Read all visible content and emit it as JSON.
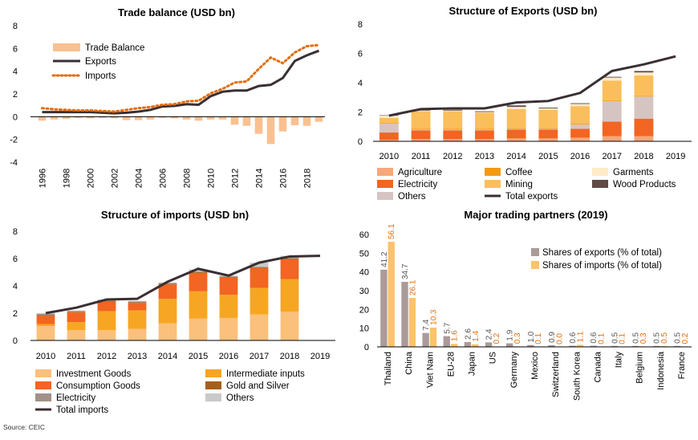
{
  "source": "Source: CEIC",
  "colors": {
    "trade_balance": "#fac090",
    "exports_line": "#3a2f31",
    "imports_line": "#e46c0a",
    "agriculture": "#f7a77a",
    "coffee": "#f59a0f",
    "garments": "#fdebc9",
    "electricity_exp": "#f26522",
    "mining": "#fbbe5c",
    "wood_products": "#5f4b45",
    "others_exp": "#d6c4c3",
    "investment_goods": "#fbc07b",
    "intermediate_inputs": "#f6a623",
    "consumption_goods": "#f26522",
    "gold_silver": "#a5601a",
    "electricity_imp": "#a29189",
    "others_imp": "#c9c9c9",
    "partners_exports": "#ab9b98",
    "partners_imports": "#fbc36a",
    "export_label": "#555555",
    "import_label": "#e46c0a"
  },
  "chart_data": [
    {
      "id": "trade",
      "type": "line",
      "title": "Trade balance (USD bn)",
      "ylim": [
        -4,
        8
      ],
      "yticks": [
        -4,
        -2,
        0,
        2,
        4,
        6,
        8
      ],
      "x_ticks": [
        "1996",
        "1998",
        "2000",
        "2002",
        "2004",
        "2006",
        "2008",
        "2010",
        "2012",
        "2014",
        "2016",
        "2018"
      ],
      "x": [
        1996,
        1997,
        1998,
        1999,
        2000,
        2001,
        2002,
        2003,
        2004,
        2005,
        2006,
        2007,
        2008,
        2009,
        2010,
        2011,
        2012,
        2013,
        2014,
        2015,
        2016,
        2017,
        2018,
        2019
      ],
      "legend": [
        "Trade Balance",
        "Exports",
        "Imports"
      ],
      "series": [
        {
          "name": "Trade Balance",
          "kind": "bar",
          "values": [
            -0.35,
            -0.25,
            -0.2,
            -0.1,
            -0.15,
            -0.1,
            -0.15,
            -0.3,
            -0.3,
            -0.25,
            -0.1,
            -0.15,
            -0.25,
            -0.35,
            -0.25,
            -0.25,
            -0.7,
            -0.8,
            -1.5,
            -2.4,
            -1.3,
            -0.75,
            -0.8,
            -0.45
          ]
        },
        {
          "name": "Exports",
          "kind": "line",
          "values": [
            0.4,
            0.4,
            0.4,
            0.4,
            0.4,
            0.35,
            0.3,
            0.35,
            0.45,
            0.6,
            0.9,
            0.95,
            1.1,
            1.05,
            1.8,
            2.2,
            2.3,
            2.3,
            2.7,
            2.8,
            3.4,
            4.9,
            5.4,
            5.8
          ]
        },
        {
          "name": "Imports",
          "kind": "line",
          "values": [
            0.75,
            0.65,
            0.6,
            0.55,
            0.55,
            0.5,
            0.45,
            0.6,
            0.75,
            0.85,
            1.05,
            1.1,
            1.35,
            1.4,
            2.05,
            2.45,
            3.0,
            3.1,
            4.2,
            5.2,
            4.7,
            5.65,
            6.2,
            6.3
          ]
        }
      ]
    },
    {
      "id": "exports",
      "type": "bar",
      "stacked": true,
      "title": "Structure of Exports (USD bn)",
      "ylim": [
        0,
        8
      ],
      "yticks": [
        0,
        2,
        4,
        6,
        8
      ],
      "categories": [
        "2010",
        "2011",
        "2012",
        "2013",
        "2014",
        "2015",
        "2016",
        "2017",
        "2018",
        "2019"
      ],
      "series": [
        {
          "name": "Agriculture",
          "values": [
            0.1,
            0.15,
            0.15,
            0.15,
            0.2,
            0.2,
            0.25,
            0.35,
            0.35,
            0
          ]
        },
        {
          "name": "Electricity",
          "values": [
            0.5,
            0.6,
            0.6,
            0.6,
            0.6,
            0.6,
            0.6,
            1.0,
            1.2,
            0
          ]
        },
        {
          "name": "Others",
          "values": [
            0.6,
            0.05,
            0.05,
            0.05,
            0.05,
            0.05,
            0.3,
            1.4,
            1.5,
            0
          ]
        },
        {
          "name": "Coffee",
          "values": [
            0.05,
            0.05,
            0.05,
            0.05,
            0.05,
            0.05,
            0.05,
            0.05,
            0.05,
            0
          ]
        },
        {
          "name": "Mining",
          "values": [
            0.35,
            1.2,
            1.2,
            1.1,
            1.3,
            1.25,
            1.2,
            1.35,
            1.4,
            0
          ]
        },
        {
          "name": "Garments",
          "values": [
            0.15,
            0.05,
            0.05,
            0.05,
            0.15,
            0.1,
            0.15,
            0.2,
            0.2,
            0
          ]
        },
        {
          "name": "Wood Products",
          "values": [
            0.03,
            0.05,
            0.05,
            0.05,
            0.1,
            0.05,
            0.05,
            0.05,
            0.1,
            0
          ]
        }
      ],
      "total": {
        "name": "Total exports",
        "values": [
          1.75,
          2.2,
          2.25,
          2.25,
          2.65,
          2.75,
          3.3,
          4.8,
          5.25,
          5.8
        ]
      },
      "legend": [
        "Agriculture",
        "Coffee",
        "Garments",
        "Electricity",
        "Mining",
        "Wood Products",
        "Others",
        "Total exports"
      ]
    },
    {
      "id": "imports",
      "type": "bar",
      "stacked": true,
      "title": "Structure of imports (USD bn)",
      "ylim": [
        0,
        8
      ],
      "yticks": [
        0,
        2,
        4,
        6,
        8
      ],
      "categories": [
        "2010",
        "2011",
        "2012",
        "2013",
        "2014",
        "2015",
        "2016",
        "2017",
        "2018",
        "2019"
      ],
      "series": [
        {
          "name": "Investment Goods",
          "values": [
            1.05,
            0.75,
            0.75,
            0.85,
            1.25,
            1.6,
            1.65,
            1.9,
            2.1,
            0
          ]
        },
        {
          "name": "Intermediate inputs",
          "values": [
            0.15,
            0.6,
            1.4,
            1.35,
            1.8,
            2.0,
            1.7,
            1.95,
            2.4,
            0
          ]
        },
        {
          "name": "Consumption Goods",
          "values": [
            0.6,
            0.7,
            0.7,
            0.55,
            1.05,
            1.35,
            1.25,
            1.45,
            1.45,
            0
          ]
        },
        {
          "name": "Gold and Silver",
          "values": [
            0.05,
            0.05,
            0.05,
            0.05,
            0.05,
            0.05,
            0.05,
            0.05,
            0.05,
            0
          ]
        },
        {
          "name": "Electricity",
          "values": [
            0.1,
            0.05,
            0.05,
            0.05,
            0.05,
            0.05,
            0.05,
            0.05,
            0.05,
            0
          ]
        },
        {
          "name": "Others",
          "values": [
            0.05,
            0.05,
            0.05,
            0.05,
            0.05,
            0.15,
            0.05,
            0.3,
            0.15,
            0
          ]
        }
      ],
      "total": {
        "name": "Total imports",
        "values": [
          2.0,
          2.4,
          3.0,
          3.05,
          4.3,
          5.25,
          4.75,
          5.7,
          6.15,
          6.2
        ]
      },
      "legend": [
        "Investment Goods",
        "Intermediate inputs",
        "Consumption Goods",
        "Gold and Silver",
        "Electricity",
        "Others",
        "Total imports"
      ]
    },
    {
      "id": "partners",
      "type": "bar",
      "title": "Major trading partners (2019)",
      "ylim": [
        0,
        60
      ],
      "yticks": [
        0,
        10,
        20,
        30,
        40,
        50,
        60
      ],
      "categories": [
        "Thailand",
        "China",
        "Viet Nam",
        "EU-28",
        "Japan",
        "US",
        "Germany",
        "Mexico",
        "Switzerland",
        "South Korea",
        "Canada",
        "Italy",
        "Belgium",
        "Indonesia",
        "France"
      ],
      "series": [
        {
          "name": "Shares of exports (% of total)",
          "values": [
            41.2,
            34.7,
            7.4,
            5.7,
            2.6,
            2.4,
            1.9,
            1.0,
            0.9,
            0.6,
            0.6,
            0.5,
            0.5,
            0.5,
            0.5
          ],
          "labels": [
            "41.2",
            "34.7",
            "7.4",
            "5.7",
            "2.6",
            "2.4",
            "1.9",
            "1.0",
            "0.9",
            "0.6",
            "0.6",
            "0.5",
            "0.5",
            "0.5",
            "0.5"
          ]
        },
        {
          "name": "Shares of imports (% of total)",
          "values": [
            56.1,
            26.1,
            10.3,
            1.6,
            1.4,
            0.2,
            0.3,
            0.1,
            0.0,
            1.1,
            0.1,
            0.1,
            0.3,
            0.5,
            0.2
          ],
          "labels": [
            "56.1",
            "26.1",
            "10.3",
            "1.6",
            "1.4",
            "0.2",
            "0.3",
            "0.1",
            "0.0",
            "1.1",
            "0.1",
            "0.1",
            "0.3",
            "0.5",
            "0.2"
          ]
        }
      ],
      "legend": [
        "Shares of exports (% of total)",
        "Shares of imports (% of total)"
      ]
    }
  ]
}
